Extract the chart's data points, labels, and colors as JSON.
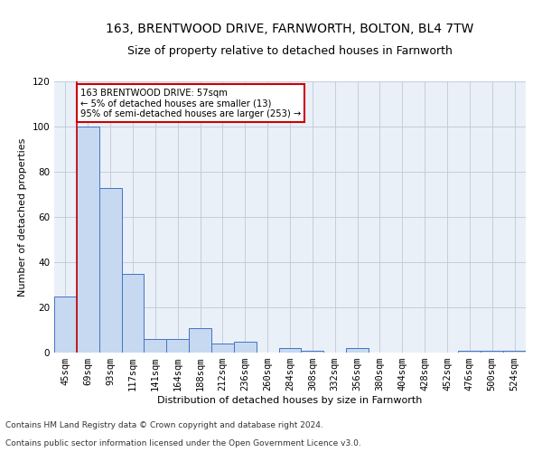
{
  "title1": "163, BRENTWOOD DRIVE, FARNWORTH, BOLTON, BL4 7TW",
  "title2": "Size of property relative to detached houses in Farnworth",
  "xlabel": "Distribution of detached houses by size in Farnworth",
  "ylabel": "Number of detached properties",
  "footnote1": "Contains HM Land Registry data © Crown copyright and database right 2024.",
  "footnote2": "Contains public sector information licensed under the Open Government Licence v3.0.",
  "annotation_line1": "163 BRENTWOOD DRIVE: 57sqm",
  "annotation_line2": "← 5% of detached houses are smaller (13)",
  "annotation_line3": "95% of semi-detached houses are larger (253) →",
  "categories": [
    "45sqm",
    "69sqm",
    "93sqm",
    "117sqm",
    "141sqm",
    "164sqm",
    "188sqm",
    "212sqm",
    "236sqm",
    "260sqm",
    "284sqm",
    "308sqm",
    "332sqm",
    "356sqm",
    "380sqm",
    "404sqm",
    "428sqm",
    "452sqm",
    "476sqm",
    "500sqm",
    "524sqm"
  ],
  "values": [
    25,
    100,
    73,
    35,
    6,
    6,
    11,
    4,
    5,
    0,
    2,
    1,
    0,
    2,
    0,
    0,
    0,
    0,
    1,
    1,
    1
  ],
  "bar_color": "#c6d9f0",
  "bar_edge_color": "#4472c4",
  "ylim": [
    0,
    120
  ],
  "yticks": [
    0,
    20,
    40,
    60,
    80,
    100,
    120
  ],
  "bg_color": "#ffffff",
  "ax_bg_color": "#eaf0f8",
  "grid_color": "#c0c8d8",
  "annotation_box_color": "#ffffff",
  "annotation_box_edge": "#cc0000",
  "red_line_color": "#cc0000",
  "red_line_x": 0.5,
  "title_fontsize": 10,
  "subtitle_fontsize": 9,
  "axis_label_fontsize": 8,
  "tick_fontsize": 7.5,
  "footnote_fontsize": 6.5
}
